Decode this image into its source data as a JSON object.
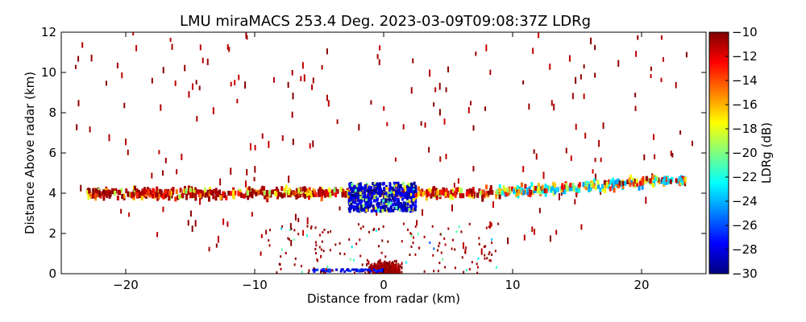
{
  "chart_data": {
    "type": "heatmap",
    "title": "LMU miraMACS 253.4 Deg. 2023-03-09T09:08:37Z  LDRg",
    "xlabel": "Distance from radar (km)",
    "ylabel": "Distance Above radar  (km)",
    "xlim": [
      -25,
      25
    ],
    "ylim": [
      0,
      12
    ],
    "x_ticks": [
      -20,
      -10,
      0,
      10,
      20
    ],
    "y_ticks": [
      0,
      2,
      4,
      6,
      8,
      10,
      12
    ],
    "colorbar": {
      "label": "LDRg (dB)",
      "range": [
        -30,
        -10
      ],
      "ticks": [
        -10,
        -12,
        -14,
        -16,
        -18,
        -20,
        -22,
        -24,
        -26,
        -28,
        -30
      ],
      "colormap": "jet"
    },
    "features": [
      {
        "description": "melting layer band",
        "x_range": [
          -23,
          23.5
        ],
        "height_km": [
          3.4,
          4.7
        ]
      },
      {
        "description": "low-LDR cluster above radar",
        "x_range": [
          -3,
          2.5
        ],
        "height_km": [
          3.0,
          4.6
        ],
        "ldr_db": -27
      },
      {
        "description": "low-LDR patch",
        "x_range": [
          9,
          23
        ],
        "height_km": [
          3.2,
          4.6
        ],
        "ldr_db": -23
      },
      {
        "description": "near-ground clutter",
        "x_range": [
          -2,
          2
        ],
        "height_km": [
          0,
          1.0
        ],
        "ldr_db": -10
      },
      {
        "description": "sparse speckle",
        "x_range": [
          -24,
          22
        ],
        "height_km": [
          0,
          12
        ],
        "ldr_db": -10
      }
    ]
  }
}
